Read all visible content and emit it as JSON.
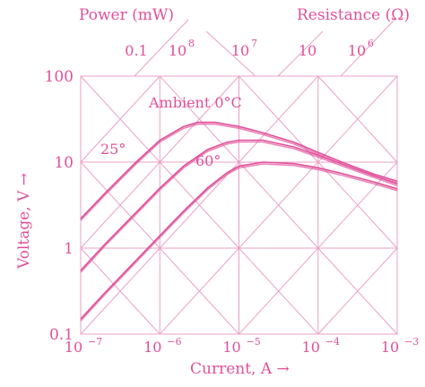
{
  "chart_data": {
    "type": "line",
    "title": "",
    "xlabel": "Current, A →",
    "ylabel": "Voltage, V →",
    "x_scale": "log",
    "y_scale": "log",
    "xlim": [
      1e-07,
      0.001
    ],
    "ylim": [
      0.1,
      100
    ],
    "grid": true,
    "x_ticks": [
      {
        "value": 1e-07,
        "base": "10",
        "exp": "−7"
      },
      {
        "value": 1e-06,
        "base": "10",
        "exp": "−6"
      },
      {
        "value": 1e-05,
        "base": "10",
        "exp": "−5"
      },
      {
        "value": 0.0001,
        "base": "10",
        "exp": "−4"
      },
      {
        "value": 0.001,
        "base": "10",
        "exp": "−3"
      }
    ],
    "y_ticks": [
      {
        "value": 100,
        "label": "100"
      },
      {
        "value": 10,
        "label": "10"
      },
      {
        "value": 1,
        "label": "1"
      },
      {
        "value": 0.1,
        "label": "0.1"
      }
    ],
    "power_axis": {
      "label": "Power (mW)",
      "ticks": [
        {
          "label": "0.1",
          "x_at_top": 1e-06
        },
        {
          "label": "10",
          "sup": "8",
          "x_at_top": 1e-06
        },
        {
          "label": "10",
          "sup": "7",
          "x_at_top": 1e-05
        }
      ]
    },
    "resistance_axis": {
      "label": "Resistance (Ω)",
      "ticks": [
        {
          "label": "10",
          "x_at_top": 0.0001
        },
        {
          "label": "10",
          "sup": "6",
          "x_at_top": 0.001
        }
      ]
    },
    "annotations": {
      "ambient": "Ambient 0°C",
      "t25": "25°",
      "t60": "60°"
    },
    "series": [
      {
        "name": "Ambient 0°C",
        "x": [
          1e-07,
          2e-07,
          5e-07,
          1e-06,
          2e-06,
          3e-06,
          5e-06,
          1e-05,
          2e-05,
          5e-05,
          0.0001,
          0.0002,
          0.0005,
          0.001
        ],
        "y": [
          2.2,
          4.3,
          10,
          18,
          26,
          29,
          29,
          26,
          22,
          17,
          13,
          10,
          7.3,
          6
        ]
      },
      {
        "name": "25°",
        "x": [
          1e-07,
          2e-07,
          5e-07,
          1e-06,
          2e-06,
          4e-06,
          7e-06,
          1e-05,
          2e-05,
          5e-05,
          0.0001,
          0.0002,
          0.0005,
          0.001
        ],
        "y": [
          0.55,
          1.1,
          2.6,
          5,
          9,
          14,
          17,
          18,
          18,
          15,
          12,
          9.5,
          7,
          5.6
        ]
      },
      {
        "name": "60°",
        "x": [
          1e-07,
          2e-07,
          5e-07,
          1e-06,
          2e-06,
          4e-06,
          7e-06,
          1e-05,
          2e-05,
          5e-05,
          0.0001,
          0.0002,
          0.0005,
          0.001
        ],
        "y": [
          0.15,
          0.3,
          0.72,
          1.4,
          2.7,
          5,
          7.5,
          9,
          10,
          9.6,
          8.6,
          7.4,
          5.9,
          4.9
        ]
      }
    ]
  }
}
